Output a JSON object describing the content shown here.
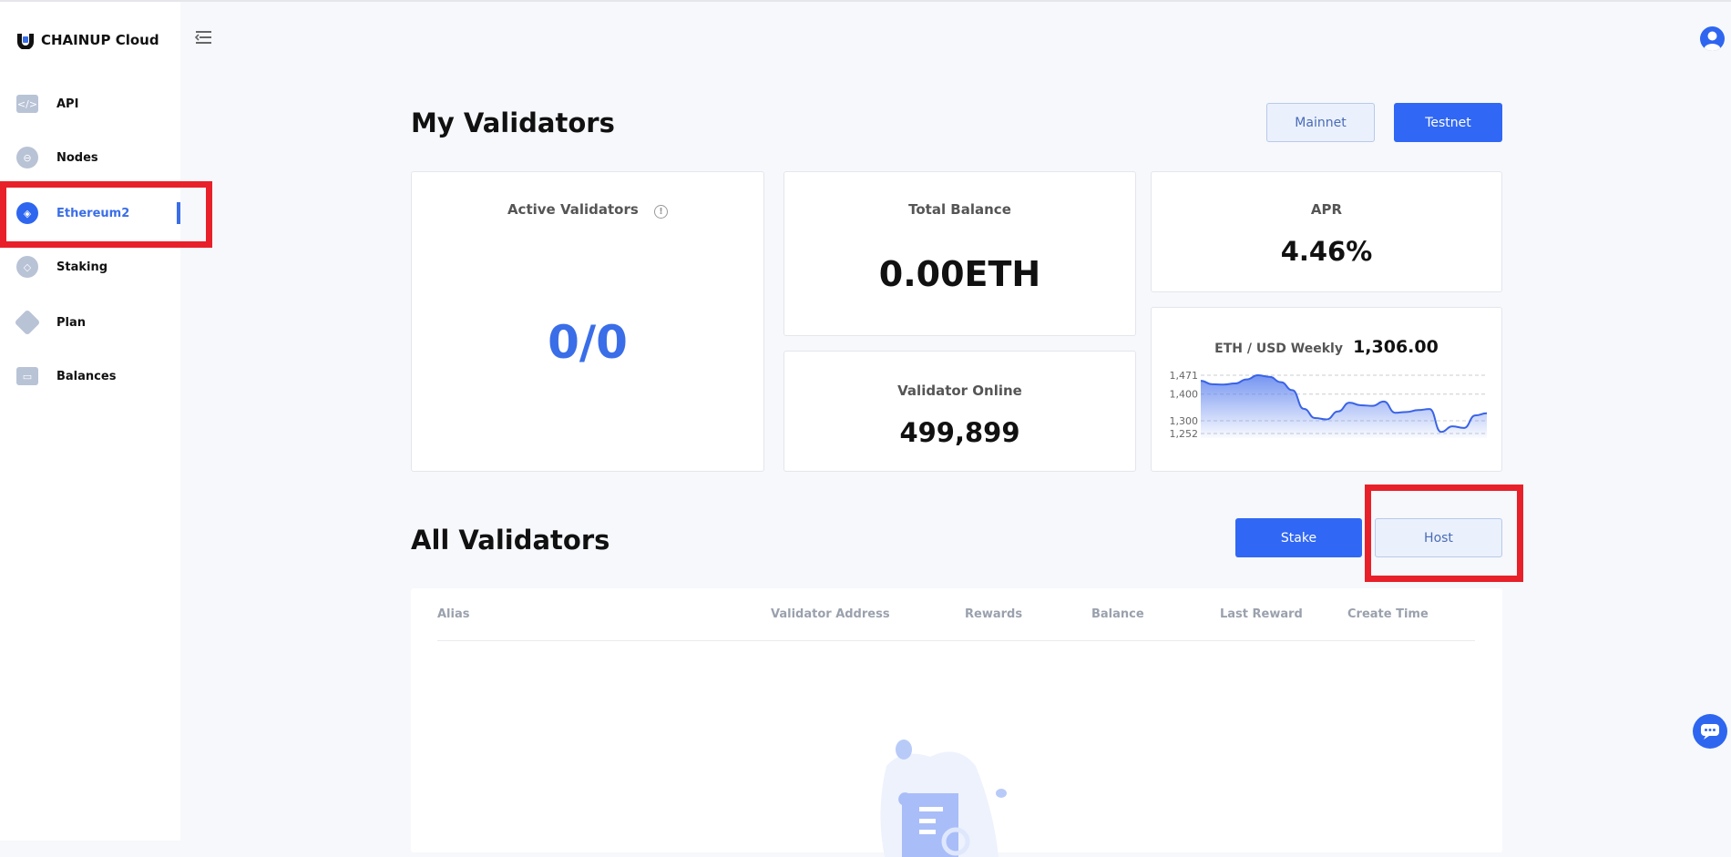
{
  "brand": {
    "name": "CHAINUP Cloud"
  },
  "sidebar": {
    "items": [
      {
        "label": "API",
        "icon": "code-icon"
      },
      {
        "label": "Nodes",
        "icon": "nodes-icon"
      },
      {
        "label": "Ethereum2",
        "icon": "ethereum-icon",
        "active": true
      },
      {
        "label": "Staking",
        "icon": "staking-icon"
      },
      {
        "label": "Plan",
        "icon": "diamond-icon"
      },
      {
        "label": "Balances",
        "icon": "wallet-icon"
      }
    ]
  },
  "my_validators": {
    "title": "My Validators",
    "mainnet_label": "Mainnet",
    "testnet_label": "Testnet",
    "active_validators": {
      "label": "Active Validators",
      "value": "0/0"
    },
    "total_balance": {
      "label": "Total Balance",
      "value": "0.00ETH"
    },
    "validator_online": {
      "label": "Validator Online",
      "value": "499,899"
    },
    "apr": {
      "label": "APR",
      "value": "4.46%"
    },
    "price": {
      "label": "ETH / USD Weekly",
      "value": "1,306.00"
    }
  },
  "chart_data": {
    "type": "area",
    "title": "ETH / USD Weekly",
    "yticks": [
      "1,471",
      "1,400",
      "1,300",
      "1,252"
    ],
    "ytick_values": [
      1471,
      1400,
      1300,
      1252
    ],
    "ylim": [
      1252,
      1471
    ],
    "grid": true,
    "color": "#3a63e6",
    "values": [
      1450,
      1437,
      1436,
      1440,
      1455,
      1471,
      1465,
      1445,
      1415,
      1345,
      1310,
      1305,
      1335,
      1368,
      1358,
      1356,
      1372,
      1330,
      1333,
      1340,
      1344,
      1258,
      1279,
      1273,
      1320,
      1328
    ]
  },
  "all_validators": {
    "title": "All Validators",
    "stake_label": "Stake",
    "host_label": "Host",
    "columns": [
      "Alias",
      "Validator Address",
      "Rewards",
      "Balance",
      "Last Reward",
      "Create Time"
    ],
    "rows": []
  },
  "colors": {
    "accent": "#3067f4",
    "highlight": "#e8202a"
  }
}
